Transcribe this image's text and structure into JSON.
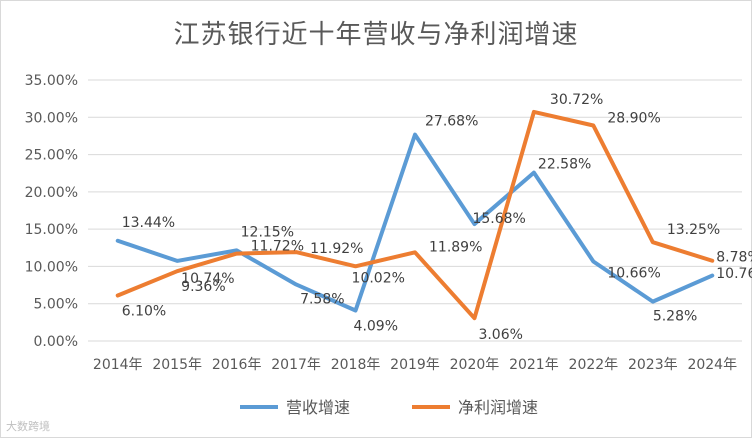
{
  "chart_data": {
    "type": "line",
    "title": "江苏银行近十年营收与净利润增速",
    "categories": [
      "2014年",
      "2015年",
      "2016年",
      "2017年",
      "2018年",
      "2019年",
      "2020年",
      "2021年",
      "2022年",
      "2023年",
      "2024年"
    ],
    "ylim": [
      0,
      35
    ],
    "yticks": [
      "0.00%",
      "5.00%",
      "10.00%",
      "15.00%",
      "20.00%",
      "25.00%",
      "30.00%",
      "35.00%"
    ],
    "grid": true,
    "legend_position": "bottom",
    "series": [
      {
        "name": "营收增速",
        "color": "#5b9bd5",
        "values": [
          13.44,
          10.74,
          12.15,
          7.58,
          4.09,
          27.68,
          15.68,
          22.58,
          10.66,
          5.28,
          8.78
        ],
        "labels": [
          "13.44%",
          "10.74%",
          "12.15%",
          "7.58%",
          "4.09%",
          "27.68%",
          "15.68%",
          "22.58%",
          "10.66%",
          "5.28%",
          "8.78%"
        ]
      },
      {
        "name": "净利润增速",
        "color": "#ed7d31",
        "values": [
          6.1,
          9.36,
          11.72,
          11.92,
          10.02,
          11.89,
          3.06,
          30.72,
          28.9,
          13.25,
          10.76
        ],
        "labels": [
          "6.10%",
          "9.36%",
          "11.72%",
          "11.92%",
          "10.02%",
          "11.89%",
          "3.06%",
          "30.72%",
          "28.90%",
          "13.25%",
          "10.76%"
        ]
      }
    ]
  },
  "watermark": "大数跨境"
}
